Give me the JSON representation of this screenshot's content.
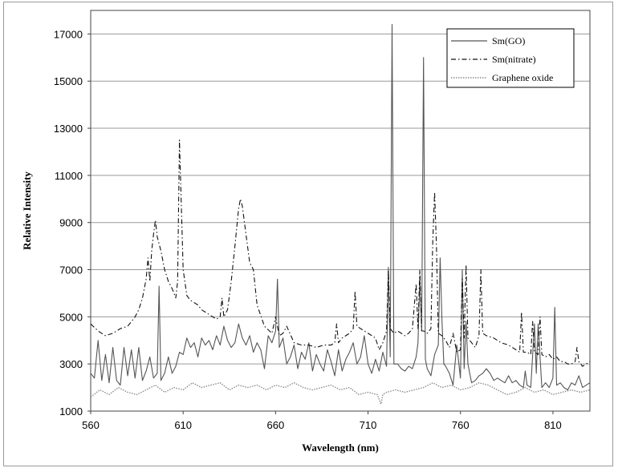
{
  "chart_data": {
    "type": "line",
    "title": "",
    "xlabel": "Wavelength (nm)",
    "ylabel": "Relative Intensity",
    "xlim": [
      560,
      830
    ],
    "ylim": [
      1000,
      18000
    ],
    "x_ticks": [
      560,
      610,
      660,
      710,
      760,
      810
    ],
    "y_ticks": [
      1000,
      3000,
      5000,
      7000,
      9000,
      11000,
      13000,
      15000,
      17000
    ],
    "grid": "horizontal",
    "legend_position": "top-right",
    "colors": {
      "sm_go": "#555555",
      "sm_nitrate": "#111111",
      "graphene_oxide": "#8c8c8c",
      "grid": "#9a9a9a"
    },
    "series": [
      {
        "name": "Sm(GO)",
        "style": "solid",
        "x": [
          560,
          562,
          564,
          566,
          568,
          570,
          572,
          574,
          576,
          578,
          580,
          582,
          584,
          586,
          588,
          590,
          592,
          594,
          596,
          597,
          598,
          600,
          602,
          604,
          606,
          608,
          610,
          612,
          614,
          616,
          618,
          620,
          622,
          624,
          626,
          628,
          630,
          632,
          634,
          636,
          638,
          640,
          642,
          644,
          646,
          648,
          650,
          652,
          654,
          656,
          658,
          660,
          661,
          662,
          664,
          666,
          668,
          670,
          672,
          674,
          676,
          678,
          680,
          682,
          684,
          686,
          688,
          690,
          692,
          694,
          696,
          698,
          700,
          702,
          704,
          706,
          708,
          710,
          712,
          714,
          716,
          718,
          720,
          721,
          722,
          723,
          724,
          726,
          728,
          730,
          732,
          734,
          736,
          737,
          738,
          739,
          740,
          741,
          742,
          744,
          746,
          748,
          749,
          750,
          751,
          752,
          754,
          756,
          758,
          760,
          761,
          762,
          763,
          764,
          766,
          768,
          770,
          772,
          774,
          776,
          778,
          780,
          782,
          784,
          786,
          788,
          790,
          792,
          794,
          795,
          796,
          798,
          800,
          801,
          802,
          804,
          806,
          808,
          810,
          811,
          812,
          814,
          816,
          818,
          820,
          822,
          824,
          826,
          828,
          830
        ],
        "values": [
          2600,
          2400,
          4000,
          2300,
          3400,
          2200,
          3700,
          2300,
          2100,
          3700,
          2500,
          3600,
          2400,
          3700,
          2300,
          2700,
          3300,
          2400,
          2600,
          6300,
          2300,
          2600,
          3300,
          2600,
          2900,
          3500,
          3400,
          4100,
          3700,
          3900,
          3300,
          4100,
          3800,
          4000,
          3600,
          4200,
          3800,
          4600,
          4000,
          3700,
          3900,
          4700,
          4100,
          3800,
          4200,
          3500,
          3900,
          3600,
          2800,
          4200,
          3900,
          4400,
          6600,
          3700,
          4100,
          3000,
          3300,
          3800,
          2800,
          3500,
          3200,
          3900,
          2700,
          3400,
          3000,
          2700,
          3600,
          3100,
          2500,
          3600,
          2700,
          3200,
          3500,
          3900,
          3000,
          3300,
          4200,
          3000,
          2600,
          3200,
          2700,
          3500,
          2900,
          7100,
          3300,
          17400,
          3000,
          3000,
          2800,
          2700,
          2900,
          2800,
          3300,
          3900,
          6700,
          4400,
          16000,
          3200,
          2800,
          2500,
          3400,
          3800,
          7500,
          4800,
          3000,
          2900,
          2600,
          2100,
          3800,
          2400,
          7000,
          2800,
          4800,
          3000,
          2200,
          2300,
          2500,
          2600,
          2800,
          2600,
          2300,
          2400,
          2300,
          2200,
          2500,
          2200,
          2300,
          2100,
          2000,
          2700,
          2100,
          2000,
          4700,
          2600,
          4700,
          2000,
          2200,
          2000,
          2400,
          5400,
          2100,
          2200,
          2000,
          1900,
          2200,
          2100,
          2500,
          2000,
          2100,
          2200
        ]
      },
      {
        "name": "Sm(nitrate)",
        "style": "dash-dot",
        "x": [
          560,
          564,
          568,
          572,
          576,
          580,
          584,
          586,
          588,
          590,
          591,
          592,
          593,
          594,
          595,
          596,
          598,
          600,
          602,
          604,
          606,
          607,
          608,
          610,
          612,
          614,
          616,
          618,
          620,
          622,
          624,
          626,
          628,
          630,
          631,
          632,
          634,
          636,
          638,
          640,
          641,
          642,
          644,
          646,
          648,
          650,
          654,
          658,
          660,
          662,
          664,
          666,
          670,
          674,
          678,
          682,
          686,
          690,
          692,
          693,
          694,
          696,
          700,
          702,
          703,
          704,
          706,
          710,
          714,
          716,
          718,
          720,
          721,
          722,
          724,
          726,
          728,
          730,
          732,
          734,
          736,
          737,
          738,
          739,
          740,
          742,
          744,
          745,
          746,
          747,
          748,
          750,
          752,
          754,
          756,
          758,
          760,
          761,
          762,
          763,
          764,
          766,
          768,
          770,
          771,
          772,
          774,
          778,
          782,
          786,
          790,
          792,
          793,
          794,
          796,
          798,
          799,
          800,
          802,
          803,
          804,
          806,
          808,
          810,
          812,
          814,
          816,
          818,
          820,
          822,
          823,
          824,
          826,
          828,
          830
        ],
        "values": [
          4700,
          4400,
          4200,
          4300,
          4500,
          4600,
          5000,
          5300,
          5800,
          6600,
          7500,
          6500,
          7800,
          8500,
          9100,
          8400,
          7800,
          7000,
          6500,
          6200,
          5800,
          6500,
          12500,
          7000,
          5900,
          5700,
          5600,
          5500,
          5300,
          5200,
          5100,
          5000,
          4900,
          5000,
          5800,
          5000,
          5300,
          6500,
          8000,
          9600,
          10000,
          9700,
          8500,
          7300,
          7000,
          5500,
          4600,
          4300,
          5000,
          4200,
          4300,
          4600,
          3900,
          3800,
          3800,
          3700,
          3800,
          3800,
          3900,
          4700,
          3900,
          4100,
          4300,
          4500,
          6100,
          4600,
          4500,
          4300,
          4100,
          3600,
          3900,
          4400,
          7000,
          4500,
          4300,
          4400,
          4300,
          4200,
          4300,
          4500,
          6400,
          4500,
          7000,
          4400,
          4400,
          4300,
          4500,
          8200,
          10300,
          8000,
          4300,
          4200,
          4000,
          3700,
          4300,
          3500,
          3600,
          6600,
          4100,
          7200,
          4100,
          3900,
          3700,
          4200,
          7000,
          4300,
          4200,
          4100,
          3900,
          3800,
          3600,
          3500,
          5200,
          3500,
          3500,
          3400,
          4800,
          3500,
          3400,
          5000,
          3400,
          3300,
          3400,
          3200,
          3300,
          3100,
          3100,
          3000,
          3000,
          3100,
          3700,
          3100,
          2900,
          3000,
          3100
        ]
      },
      {
        "name": "Graphene oxide",
        "style": "dotted",
        "x": [
          560,
          565,
          570,
          575,
          580,
          585,
          590,
          595,
          600,
          605,
          610,
          615,
          620,
          625,
          630,
          635,
          640,
          645,
          650,
          655,
          660,
          665,
          670,
          675,
          680,
          685,
          690,
          695,
          700,
          705,
          710,
          715,
          716,
          717,
          718,
          720,
          725,
          730,
          735,
          740,
          745,
          750,
          755,
          760,
          765,
          770,
          775,
          780,
          785,
          790,
          795,
          800,
          805,
          810,
          815,
          820,
          825,
          830
        ],
        "values": [
          1600,
          1900,
          1700,
          2000,
          1800,
          1700,
          1900,
          2100,
          1800,
          2000,
          1900,
          2200,
          2000,
          2100,
          2200,
          1900,
          2100,
          2000,
          2100,
          1900,
          2100,
          2000,
          2200,
          2000,
          1900,
          2000,
          2100,
          1900,
          2000,
          1700,
          1800,
          1700,
          1500,
          1300,
          1700,
          1800,
          1900,
          1800,
          1900,
          2000,
          2200,
          2000,
          2100,
          1900,
          2000,
          2200,
          2100,
          1900,
          1700,
          1800,
          2000,
          1800,
          1900,
          1700,
          1800,
          1900,
          1800,
          1900
        ]
      }
    ]
  }
}
